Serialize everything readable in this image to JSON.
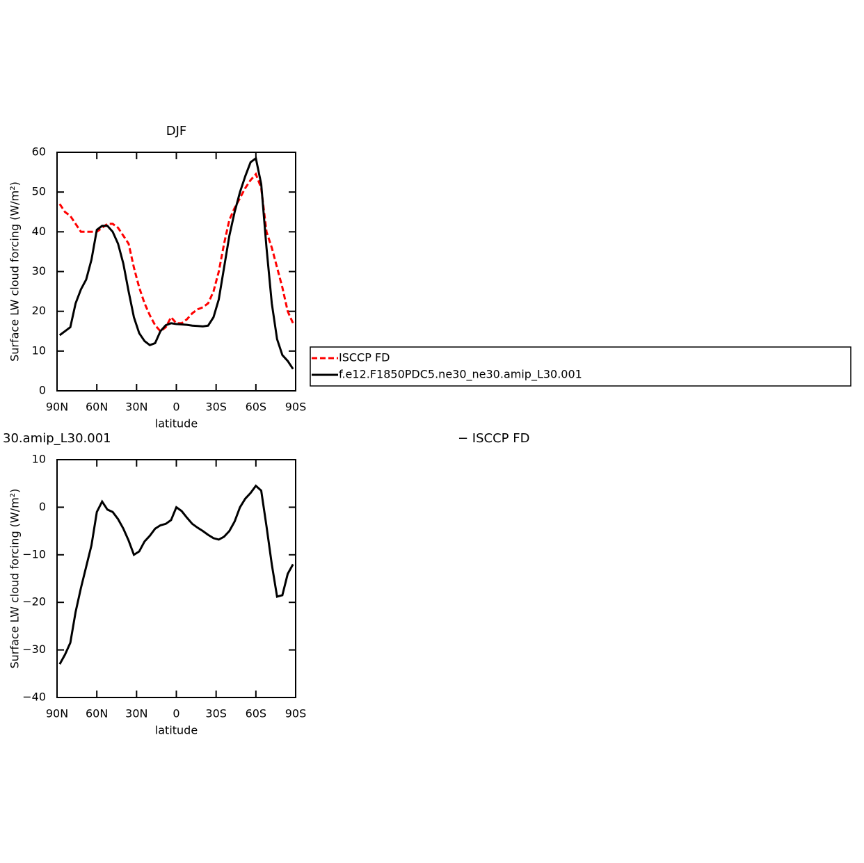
{
  "chart_data": [
    {
      "type": "line",
      "title": "DJF",
      "ylabel": "Surface LW cloud forcing (W/m²)",
      "xlabel": "latitude",
      "x": [
        88,
        84,
        80,
        76,
        72,
        68,
        64,
        60,
        56,
        52,
        48,
        44,
        40,
        36,
        32,
        28,
        24,
        20,
        16,
        12,
        8,
        4,
        0,
        -4,
        -8,
        -12,
        -16,
        -20,
        -24,
        -28,
        -32,
        -36,
        -40,
        -44,
        -48,
        -52,
        -56,
        -60,
        -64,
        -68,
        -72,
        -76,
        -80,
        -84,
        -88
      ],
      "xlim": [
        90,
        -90
      ],
      "xticks": [
        {
          "value": 90,
          "label": "90N"
        },
        {
          "value": 60,
          "label": "60N"
        },
        {
          "value": 30,
          "label": "30N"
        },
        0,
        {
          "value": -30,
          "label": "30S"
        },
        {
          "value": -60,
          "label": "60S"
        },
        {
          "value": -90,
          "label": "90S"
        }
      ],
      "ylim": [
        0,
        60
      ],
      "yticks": [
        0,
        10,
        20,
        30,
        40,
        50,
        60
      ],
      "series": [
        {
          "name": "ISCCP FD",
          "color": "#ff0000",
          "style": "dashed",
          "values": [
            47,
            45,
            44,
            42,
            40,
            40,
            40,
            40,
            41,
            42,
            42,
            41,
            39,
            37,
            31,
            26,
            22,
            19,
            16.5,
            15,
            16,
            18.5,
            17,
            17,
            18,
            19.5,
            20.5,
            21,
            22,
            25,
            30,
            37,
            43,
            46,
            48.5,
            51,
            53,
            54.5,
            51,
            40,
            36,
            31,
            26,
            20,
            17
          ]
        },
        {
          "name": "f.e12.F1850PDC5.ne30_ne30.amip_L30.001",
          "color": "#000000",
          "style": "solid",
          "values": [
            14,
            15,
            16,
            22,
            25.5,
            28,
            33,
            40.5,
            41.5,
            41.5,
            40,
            37,
            32,
            25,
            18.5,
            14.5,
            12.5,
            11.5,
            12,
            15,
            16.5,
            17,
            16.8,
            16.7,
            16.6,
            16.4,
            16.3,
            16.2,
            16.4,
            18.5,
            23,
            31,
            39,
            45,
            50,
            54,
            57.5,
            58.5,
            52,
            36,
            22,
            13,
            9,
            7.5,
            5.5
          ]
        }
      ]
    },
    {
      "type": "line",
      "left_title": "30.amip_L30.001",
      "right_title": "− ISCCP FD",
      "ylabel": "Surface LW cloud forcing (W/m²)",
      "xlabel": "latitude",
      "x": [
        88,
        84,
        80,
        76,
        72,
        68,
        64,
        60,
        56,
        52,
        48,
        44,
        40,
        36,
        32,
        28,
        24,
        20,
        16,
        12,
        8,
        4,
        0,
        -4,
        -8,
        -12,
        -16,
        -20,
        -24,
        -28,
        -32,
        -36,
        -40,
        -44,
        -48,
        -52,
        -56,
        -60,
        -64,
        -68,
        -72,
        -76,
        -80,
        -84,
        -88
      ],
      "xlim": [
        90,
        -90
      ],
      "xticks": [
        {
          "value": 90,
          "label": "90N"
        },
        {
          "value": 60,
          "label": "60N"
        },
        {
          "value": 30,
          "label": "30N"
        },
        0,
        {
          "value": -30,
          "label": "30S"
        },
        {
          "value": -60,
          "label": "60S"
        },
        {
          "value": -90,
          "label": "90S"
        }
      ],
      "ylim": [
        -40,
        10
      ],
      "yticks": [
        {
          "value": -40,
          "label": "−40"
        },
        {
          "value": -30,
          "label": "−30"
        },
        {
          "value": -20,
          "label": "−20"
        },
        {
          "value": -10,
          "label": "−10"
        },
        0,
        10
      ],
      "series": [
        {
          "color": "#000000",
          "style": "solid",
          "values": [
            -33,
            -31,
            -28.5,
            -22,
            -17,
            -12.5,
            -8,
            -1,
            1.2,
            -0.5,
            -1,
            -2.5,
            -4.5,
            -7,
            -10,
            -9.3,
            -7.2,
            -6,
            -4.5,
            -3.8,
            -3.5,
            -2.7,
            0,
            -0.8,
            -2.2,
            -3.5,
            -4.3,
            -5,
            -5.8,
            -6.5,
            -6.8,
            -6.2,
            -5,
            -3,
            0,
            1.8,
            3,
            4.5,
            3.5,
            -4,
            -12,
            -18.8,
            -18.5,
            -14,
            -12
          ]
        }
      ]
    }
  ]
}
